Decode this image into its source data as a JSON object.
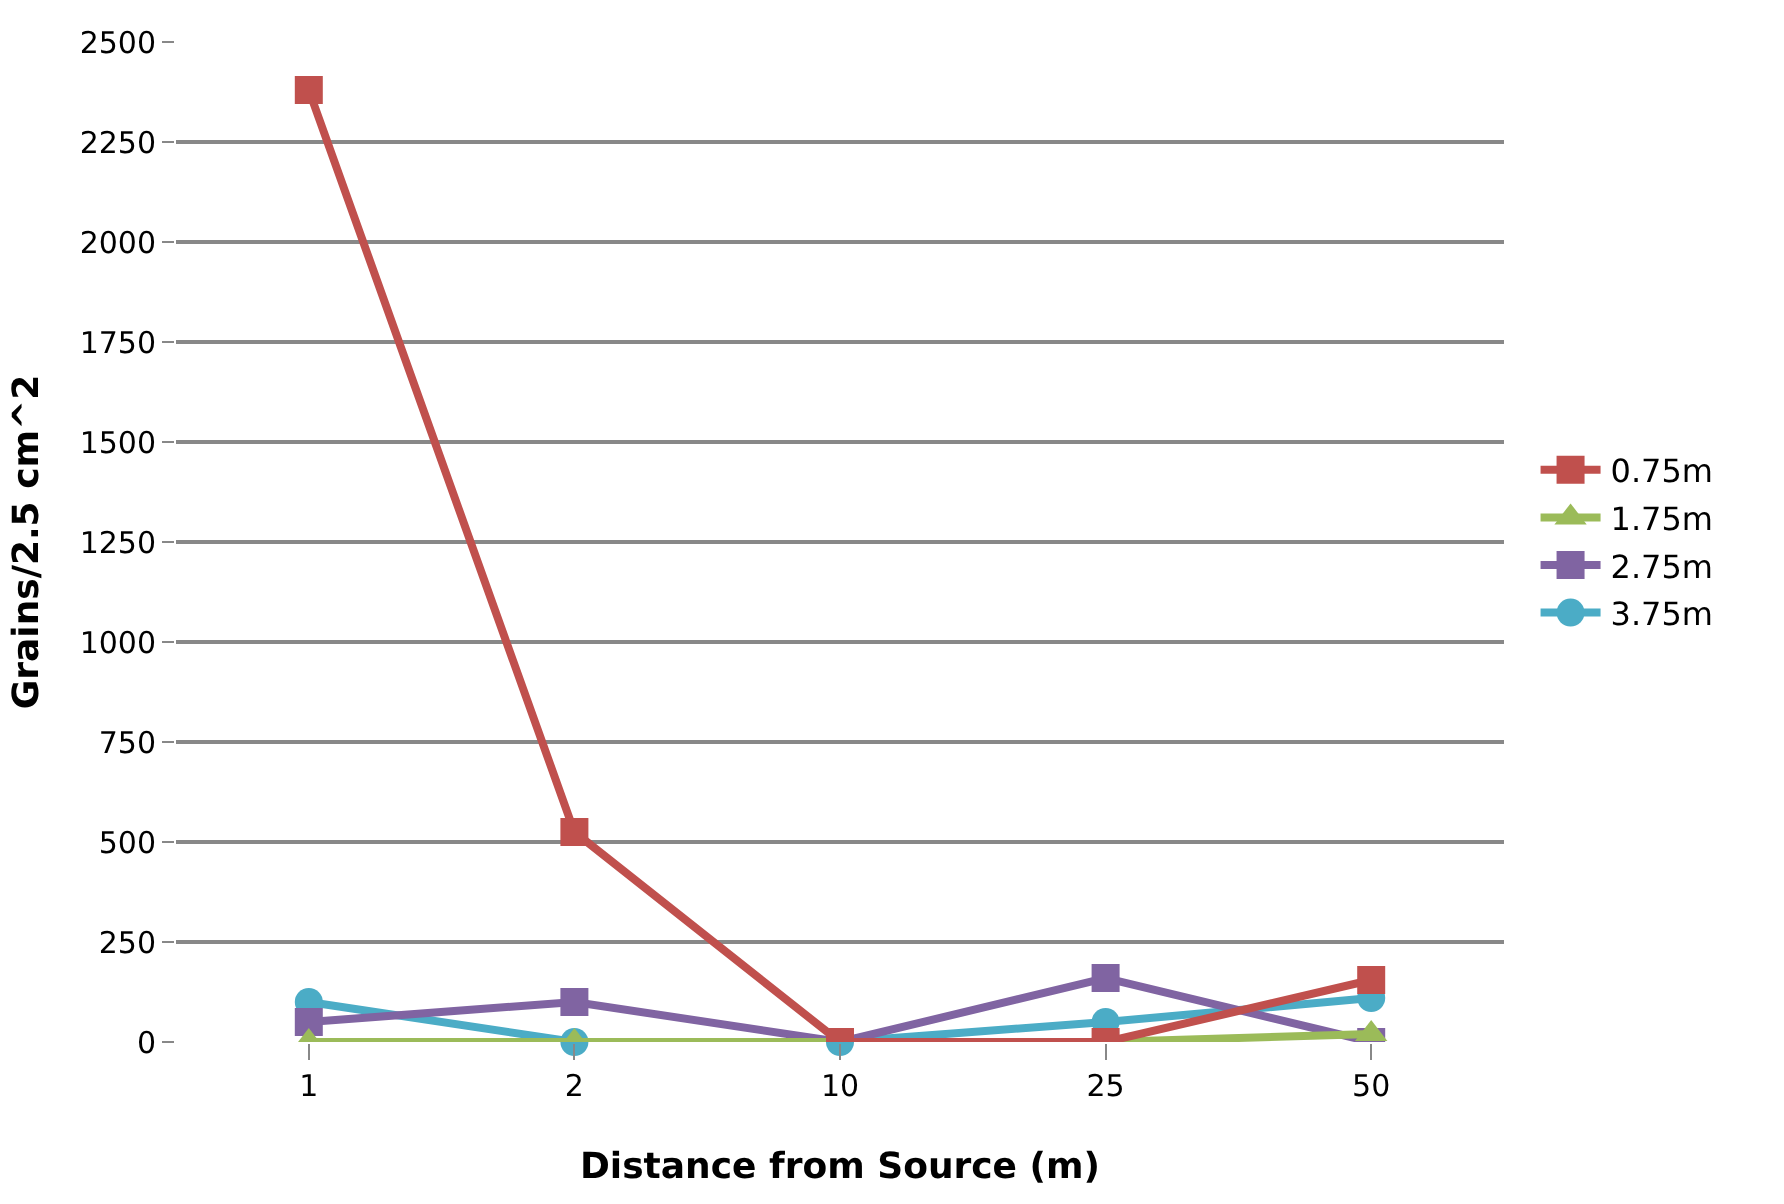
{
  "chart_data": {
    "type": "line",
    "xlabel": "Distance from Source (m)",
    "ylabel": "Grains/2.5 cm^2",
    "categories": [
      "1",
      "2",
      "10",
      "25",
      "50"
    ],
    "series": [
      {
        "name": "0.75m",
        "color": "#c0504d",
        "marker": "square",
        "values": [
          2380,
          525,
          0,
          0,
          155
        ]
      },
      {
        "name": "1.75m",
        "color": "#9bbb59",
        "marker": "triangle",
        "values": [
          0,
          0,
          0,
          0,
          20
        ]
      },
      {
        "name": "2.75m",
        "color": "#8064a2",
        "marker": "square",
        "values": [
          50,
          100,
          0,
          160,
          0
        ]
      },
      {
        "name": "3.75m",
        "color": "#4bacc6",
        "marker": "circle",
        "values": [
          100,
          0,
          0,
          50,
          110
        ]
      }
    ],
    "ylim": [
      0,
      2500
    ],
    "yticks": [
      0,
      250,
      500,
      750,
      1000,
      1250,
      1500,
      1750,
      2000,
      2250,
      2500
    ],
    "grid": "y",
    "legend": "right"
  }
}
